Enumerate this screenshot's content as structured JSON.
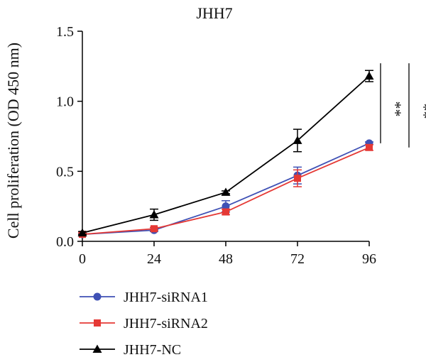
{
  "chart_data": {
    "type": "line",
    "title": "JHH7",
    "xlabel": "",
    "ylabel": "Cell proliferation (OD 450 nm)",
    "x": [
      0,
      24,
      48,
      72,
      96
    ],
    "xticks": [
      "0",
      "24",
      "48",
      "72",
      "96"
    ],
    "yticks": [
      "0.0",
      "0.5",
      "1.0",
      "1.5"
    ],
    "xlim": [
      0,
      96
    ],
    "ylim": [
      0,
      1.5
    ],
    "grid": false,
    "legend_position": "bottom-left",
    "series": [
      {
        "name": "JHH7-siRNA1",
        "color": "#3f51b5",
        "marker": "circle",
        "values": [
          0.05,
          0.08,
          0.25,
          0.47,
          0.7
        ],
        "errors": [
          0.01,
          0.01,
          0.04,
          0.06,
          0.01
        ]
      },
      {
        "name": "JHH7-siRNA2",
        "color": "#e53935",
        "marker": "square",
        "values": [
          0.05,
          0.09,
          0.21,
          0.45,
          0.67
        ],
        "errors": [
          0.01,
          0.01,
          0.02,
          0.06,
          0.02
        ]
      },
      {
        "name": "JHH7-NC",
        "color": "#000000",
        "marker": "triangle",
        "values": [
          0.06,
          0.19,
          0.35,
          0.72,
          1.18
        ],
        "errors": [
          0.01,
          0.04,
          0.01,
          0.08,
          0.04
        ]
      }
    ],
    "annotations": [
      {
        "text": "**",
        "from": 0.7,
        "to": 1.18
      },
      {
        "text": "**",
        "from": 0.67,
        "to": 1.18
      }
    ]
  }
}
